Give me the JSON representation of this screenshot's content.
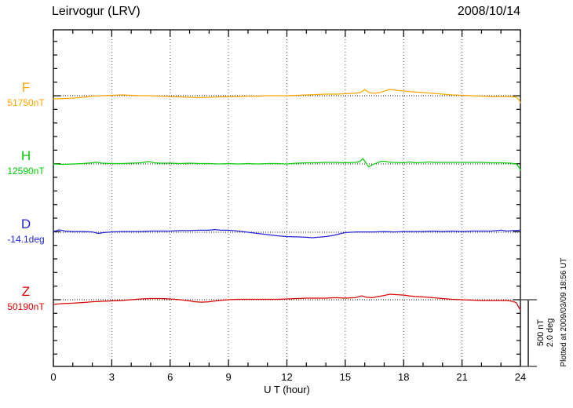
{
  "header": {
    "title": "Leirvogur (LRV)",
    "date": "2008/10/14"
  },
  "chart_data": {
    "type": "line",
    "title": "Leirvogur (LRV)",
    "date": "2008/10/14",
    "xlabel": "U T (hour)",
    "x_range": [
      0,
      24
    ],
    "x_ticks": [
      0,
      3,
      6,
      9,
      12,
      15,
      18,
      21,
      24
    ],
    "grid_hours": [
      3,
      6,
      9,
      12,
      15,
      18,
      21
    ],
    "grid_style": "vertical dotted lines at 3-hour intervals, dotted horizontal baseline per trace",
    "scale_bar": {
      "labels": [
        "500 nT",
        "2.0 deg"
      ],
      "span_nT": 500,
      "span_deg": 2.0
    },
    "footer_note": "Plotted at 2009/03/09 18:56 UT",
    "series": [
      {
        "name": "F",
        "value_label": "51750nT",
        "baseline_value": "51750 nT",
        "unit": "nT",
        "color": "#FFA500",
        "points": [
          [
            0,
            -24
          ],
          [
            0.5,
            -21
          ],
          [
            1,
            -18
          ],
          [
            1.5,
            -12
          ],
          [
            2,
            -3
          ],
          [
            2.5,
            0
          ],
          [
            3,
            3
          ],
          [
            3.5,
            6
          ],
          [
            4,
            3
          ],
          [
            4.5,
            0
          ],
          [
            5,
            0
          ],
          [
            5.5,
            -3
          ],
          [
            6,
            -6
          ],
          [
            6.5,
            -9
          ],
          [
            7,
            -12
          ],
          [
            7.5,
            -15
          ],
          [
            8,
            -12
          ],
          [
            8.5,
            -9
          ],
          [
            9,
            -6
          ],
          [
            9.5,
            -6
          ],
          [
            10,
            -3
          ],
          [
            10.5,
            -3
          ],
          [
            11,
            0
          ],
          [
            11.5,
            0
          ],
          [
            12,
            0
          ],
          [
            12.5,
            3
          ],
          [
            13,
            6
          ],
          [
            13.5,
            9
          ],
          [
            14,
            12
          ],
          [
            14.5,
            12
          ],
          [
            15,
            15
          ],
          [
            15.5,
            18
          ],
          [
            15.8,
            24
          ],
          [
            16,
            47
          ],
          [
            16.2,
            24
          ],
          [
            16.5,
            18
          ],
          [
            16.8,
            24
          ],
          [
            17,
            35
          ],
          [
            17.3,
            47
          ],
          [
            17.6,
            41
          ],
          [
            18,
            35
          ],
          [
            18.5,
            29
          ],
          [
            19,
            24
          ],
          [
            19.5,
            18
          ],
          [
            20,
            12
          ],
          [
            20.5,
            6
          ],
          [
            21,
            3
          ],
          [
            21.5,
            0
          ],
          [
            22,
            -3
          ],
          [
            22.5,
            -6
          ],
          [
            23,
            -6
          ],
          [
            23.5,
            -6
          ],
          [
            23.8,
            -12
          ],
          [
            23.95,
            -35
          ],
          [
            24,
            -53
          ]
        ]
      },
      {
        "name": "H",
        "value_label": "12590nT",
        "baseline_value": "12590 nT",
        "unit": "nT",
        "color": "#00CC00",
        "points": [
          [
            0,
            0
          ],
          [
            0.5,
            -3
          ],
          [
            1,
            0
          ],
          [
            1.5,
            3
          ],
          [
            2,
            9
          ],
          [
            2.2,
            14
          ],
          [
            2.5,
            6
          ],
          [
            3,
            3
          ],
          [
            3.5,
            3
          ],
          [
            4,
            6
          ],
          [
            4.5,
            9
          ],
          [
            4.9,
            18
          ],
          [
            5.2,
            9
          ],
          [
            5.5,
            6
          ],
          [
            6,
            6
          ],
          [
            6.5,
            3
          ],
          [
            7,
            6
          ],
          [
            7.5,
            3
          ],
          [
            8,
            3
          ],
          [
            8.5,
            0
          ],
          [
            9,
            3
          ],
          [
            9.5,
            0
          ],
          [
            10,
            3
          ],
          [
            10.5,
            0
          ],
          [
            11,
            3
          ],
          [
            11.5,
            3
          ],
          [
            12,
            0
          ],
          [
            12.5,
            6
          ],
          [
            13,
            9
          ],
          [
            13.5,
            9
          ],
          [
            14,
            12
          ],
          [
            14.5,
            12
          ],
          [
            15,
            9
          ],
          [
            15.5,
            12
          ],
          [
            15.75,
            18
          ],
          [
            15.9,
            41
          ],
          [
            16.05,
            12
          ],
          [
            16.2,
            -21
          ],
          [
            16.4,
            -6
          ],
          [
            16.6,
            6
          ],
          [
            16.8,
            18
          ],
          [
            17,
            21
          ],
          [
            17.2,
            15
          ],
          [
            17.5,
            12
          ],
          [
            18,
            9
          ],
          [
            18.3,
            15
          ],
          [
            18.6,
            9
          ],
          [
            19,
            12
          ],
          [
            19.3,
            15
          ],
          [
            19.6,
            12
          ],
          [
            20,
            12
          ],
          [
            20.5,
            12
          ],
          [
            21,
            12
          ],
          [
            21.5,
            12
          ],
          [
            22,
            12
          ],
          [
            22.5,
            9
          ],
          [
            23,
            9
          ],
          [
            23.5,
            6
          ],
          [
            23.8,
            0
          ],
          [
            23.95,
            -29
          ],
          [
            24,
            -47
          ]
        ]
      },
      {
        "name": "D",
        "value_label": "-14.1deg",
        "baseline_value": "-14.1 deg",
        "unit": "deg",
        "color": "#2222DD",
        "points": [
          [
            0,
            0.02
          ],
          [
            0.3,
            0.07
          ],
          [
            0.6,
            0.035
          ],
          [
            1,
            0.02
          ],
          [
            1.5,
            0.02
          ],
          [
            2,
            0.01
          ],
          [
            2.3,
            -0.035
          ],
          [
            2.6,
            -0.01
          ],
          [
            3,
            0.01
          ],
          [
            3.5,
            0.02
          ],
          [
            4,
            0.02
          ],
          [
            4.5,
            0.02
          ],
          [
            5,
            0.035
          ],
          [
            5.5,
            0.035
          ],
          [
            6,
            0.035
          ],
          [
            6.5,
            0.05
          ],
          [
            7,
            0.05
          ],
          [
            7.5,
            0.06
          ],
          [
            8,
            0.06
          ],
          [
            8.3,
            0.08
          ],
          [
            8.6,
            0.06
          ],
          [
            9,
            0.06
          ],
          [
            9.5,
            0.035
          ],
          [
            10,
            0
          ],
          [
            10.5,
            -0.035
          ],
          [
            11,
            -0.07
          ],
          [
            11.5,
            -0.105
          ],
          [
            12,
            -0.13
          ],
          [
            12.5,
            -0.14
          ],
          [
            13,
            -0.15
          ],
          [
            13.3,
            -0.165
          ],
          [
            13.6,
            -0.15
          ],
          [
            14,
            -0.13
          ],
          [
            14.4,
            -0.095
          ],
          [
            14.8,
            -0.035
          ],
          [
            15,
            -0.01
          ],
          [
            15.3,
            0
          ],
          [
            15.6,
            0.01
          ],
          [
            16,
            0.01
          ],
          [
            16.5,
            0.01
          ],
          [
            17,
            0.02
          ],
          [
            17.5,
            0.01
          ],
          [
            18,
            0.02
          ],
          [
            18.5,
            0.02
          ],
          [
            19,
            0.02
          ],
          [
            19.5,
            0.035
          ],
          [
            20,
            0.02
          ],
          [
            20.5,
            0.035
          ],
          [
            21,
            0.02
          ],
          [
            21.5,
            0.035
          ],
          [
            22,
            0.035
          ],
          [
            22.5,
            0.035
          ],
          [
            23,
            0.06
          ],
          [
            23.3,
            0.035
          ],
          [
            23.6,
            0.05
          ],
          [
            24,
            0.06
          ]
        ]
      },
      {
        "name": "Z",
        "value_label": "50190nT",
        "baseline_value": "50190 nT",
        "unit": "nT",
        "color": "#DD0000",
        "points": [
          [
            0,
            -35
          ],
          [
            0.5,
            -29
          ],
          [
            1,
            -26
          ],
          [
            1.5,
            -21
          ],
          [
            2,
            -15
          ],
          [
            2.5,
            -12
          ],
          [
            3,
            -9
          ],
          [
            3.5,
            -6
          ],
          [
            4,
            0
          ],
          [
            4.5,
            6
          ],
          [
            5,
            9
          ],
          [
            5.5,
            9
          ],
          [
            6,
            6
          ],
          [
            6.5,
            0
          ],
          [
            7,
            -9
          ],
          [
            7.3,
            -15
          ],
          [
            7.6,
            -18
          ],
          [
            8,
            -15
          ],
          [
            8.5,
            -6
          ],
          [
            9,
            0
          ],
          [
            9.5,
            3
          ],
          [
            10,
            3
          ],
          [
            10.5,
            3
          ],
          [
            11,
            3
          ],
          [
            11.5,
            3
          ],
          [
            12,
            6
          ],
          [
            12.5,
            9
          ],
          [
            13,
            12
          ],
          [
            13.5,
            12
          ],
          [
            14,
            12
          ],
          [
            14.5,
            15
          ],
          [
            15,
            12
          ],
          [
            15.5,
            15
          ],
          [
            15.85,
            29
          ],
          [
            16.1,
            18
          ],
          [
            16.4,
            15
          ],
          [
            16.7,
            24
          ],
          [
            17,
            32
          ],
          [
            17.3,
            41
          ],
          [
            17.6,
            38
          ],
          [
            18,
            35
          ],
          [
            18.3,
            29
          ],
          [
            18.6,
            24
          ],
          [
            19,
            21
          ],
          [
            19.5,
            15
          ],
          [
            20,
            9
          ],
          [
            20.5,
            3
          ],
          [
            21,
            0
          ],
          [
            21.5,
            -3
          ],
          [
            22,
            -6
          ],
          [
            22.5,
            -6
          ],
          [
            23,
            -6
          ],
          [
            23.3,
            -6
          ],
          [
            23.6,
            -12
          ],
          [
            23.8,
            -24
          ],
          [
            23.9,
            -53
          ],
          [
            24,
            -76
          ]
        ]
      }
    ]
  }
}
